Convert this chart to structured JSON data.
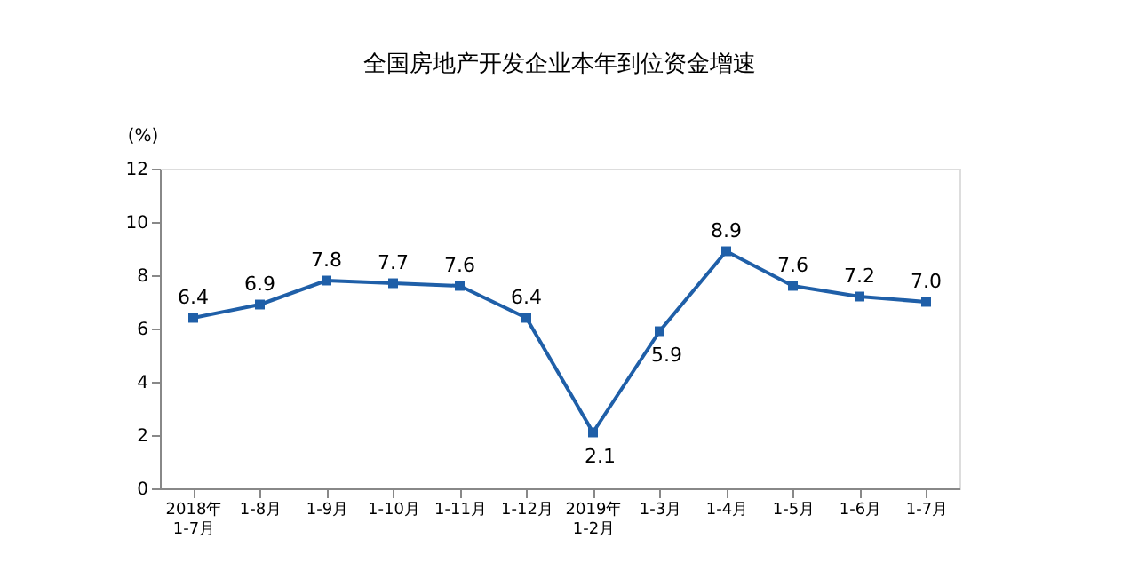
{
  "chart_data": {
    "type": "line",
    "title": "全国房地产开发企业本年到位资金增速",
    "ylabel": "(%)",
    "categories": [
      "2018年\n1-7月",
      "1-8月",
      "1-9月",
      "1-10月",
      "1-11月",
      "1-12月",
      "2019年\n1-2月",
      "1-3月",
      "1-4月",
      "1-5月",
      "1-6月",
      "1-7月"
    ],
    "series": [
      {
        "color": "#1f5fa8",
        "values": [
          6.4,
          6.9,
          7.8,
          7.7,
          7.6,
          6.4,
          2.1,
          5.9,
          8.9,
          7.6,
          7.2,
          7.0
        ],
        "value_labels": [
          "6.4",
          "6.9",
          "7.8",
          "7.7",
          "7.6",
          "6.4",
          "2.1",
          "5.9",
          "8.9",
          "7.6",
          "7.2",
          "7.0"
        ]
      }
    ],
    "ylim": [
      0,
      12
    ],
    "yticks": [
      0,
      2,
      4,
      6,
      8,
      10,
      12
    ],
    "grid": false,
    "marker": "square",
    "line_style": "solid"
  }
}
